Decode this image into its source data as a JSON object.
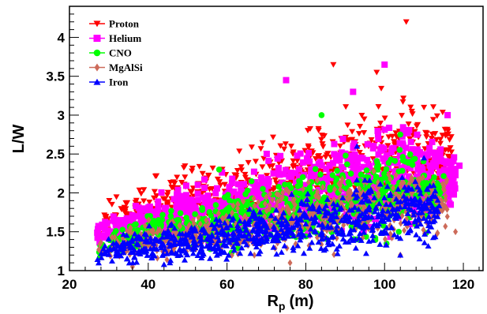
{
  "chart_data": {
    "type": "scatter",
    "xlabel": "R",
    "xlabel_sub": "p",
    "xlabel_unit": "(m)",
    "ylabel": "L/W",
    "xlim": [
      20,
      125
    ],
    "ylim": [
      1,
      4.4
    ],
    "x_ticks": [
      20,
      40,
      60,
      80,
      100,
      120
    ],
    "y_ticks": [
      1,
      1.5,
      2,
      2.5,
      3,
      3.5,
      4
    ],
    "grid": false,
    "legend_position": "top-left",
    "series": [
      {
        "name": "Proton",
        "color": "#ff0000",
        "marker": "triangle-down",
        "band": {
          "x_range": [
            27,
            117
          ],
          "lower": [
            [
              27,
              1.35
            ],
            [
              50,
              1.4
            ],
            [
              70,
              1.45
            ],
            [
              90,
              1.5
            ],
            [
              110,
              1.7
            ],
            [
              117,
              2.0
            ]
          ],
          "upper": [
            [
              27,
              1.85
            ],
            [
              40,
              2.2
            ],
            [
              60,
              2.6
            ],
            [
              80,
              3.0
            ],
            [
              95,
              3.3
            ],
            [
              108,
              3.4
            ],
            [
              117,
              3.0
            ]
          ],
          "count": 700
        },
        "notable_points": [
          [
            105.5,
            4.2
          ],
          [
            98,
            3.55
          ],
          [
            87,
            3.65
          ],
          [
            110,
            3.1
          ]
        ]
      },
      {
        "name": "Helium",
        "color": "#ff00ff",
        "marker": "square",
        "band": {
          "x_range": [
            27,
            118
          ],
          "lower": [
            [
              27,
              1.3
            ],
            [
              50,
              1.3
            ],
            [
              70,
              1.35
            ],
            [
              90,
              1.4
            ],
            [
              110,
              1.5
            ],
            [
              118,
              1.7
            ]
          ],
          "upper": [
            [
              27,
              1.65
            ],
            [
              40,
              1.95
            ],
            [
              60,
              2.35
            ],
            [
              80,
              2.7
            ],
            [
              95,
              2.95
            ],
            [
              108,
              3.0
            ],
            [
              118,
              2.6
            ]
          ],
          "count": 900
        },
        "notable_points": [
          [
            100,
            3.65
          ],
          [
            75,
            3.45
          ],
          [
            92,
            3.3
          ],
          [
            116,
            3.0
          ],
          [
            119,
            2.35
          ]
        ]
      },
      {
        "name": "CNO",
        "color": "#00ff00",
        "marker": "circle",
        "band": {
          "x_range": [
            27,
            115
          ],
          "lower": [
            [
              27,
              1.15
            ],
            [
              50,
              1.2
            ],
            [
              70,
              1.25
            ],
            [
              90,
              1.3
            ],
            [
              110,
              1.4
            ],
            [
              115,
              1.6
            ]
          ],
          "upper": [
            [
              27,
              1.5
            ],
            [
              40,
              1.75
            ],
            [
              60,
              2.05
            ],
            [
              80,
              2.35
            ],
            [
              95,
              2.6
            ],
            [
              108,
              2.7
            ],
            [
              115,
              2.4
            ]
          ],
          "count": 650
        },
        "notable_points": [
          [
            84,
            3.0
          ],
          [
            58,
            2.3
          ],
          [
            104,
            2.75
          ]
        ]
      },
      {
        "name": "MgAlSi",
        "color": "#cd6b5a",
        "marker": "diamond",
        "band": {
          "x_range": [
            27,
            116
          ],
          "lower": [
            [
              27,
              1.1
            ],
            [
              50,
              1.1
            ],
            [
              70,
              1.15
            ],
            [
              90,
              1.2
            ],
            [
              110,
              1.3
            ],
            [
              116,
              1.45
            ]
          ],
          "upper": [
            [
              27,
              1.45
            ],
            [
              40,
              1.65
            ],
            [
              60,
              1.95
            ],
            [
              80,
              2.2
            ],
            [
              95,
              2.4
            ],
            [
              108,
              2.45
            ],
            [
              116,
              2.3
            ]
          ],
          "count": 600
        },
        "notable_points": [
          [
            118,
            1.5
          ],
          [
            104,
            1.2
          ],
          [
            36,
            1.05
          ],
          [
            76,
            1.1
          ]
        ]
      },
      {
        "name": "Iron",
        "color": "#0000ff",
        "marker": "triangle-up",
        "band": {
          "x_range": [
            27,
            114
          ],
          "lower": [
            [
              27,
              1.05
            ],
            [
              50,
              1.05
            ],
            [
              70,
              1.1
            ],
            [
              90,
              1.15
            ],
            [
              110,
              1.25
            ],
            [
              114,
              1.4
            ]
          ],
          "upper": [
            [
              27,
              1.4
            ],
            [
              40,
              1.6
            ],
            [
              60,
              1.8
            ],
            [
              80,
              2.05
            ],
            [
              95,
              2.2
            ],
            [
              108,
              2.3
            ],
            [
              114,
              2.2
            ]
          ],
          "count": 750
        },
        "notable_points": [
          [
            93,
            2.6
          ],
          [
            110,
            2.45
          ],
          [
            44,
            1.08
          ],
          [
            104,
            1.2
          ]
        ]
      }
    ]
  }
}
